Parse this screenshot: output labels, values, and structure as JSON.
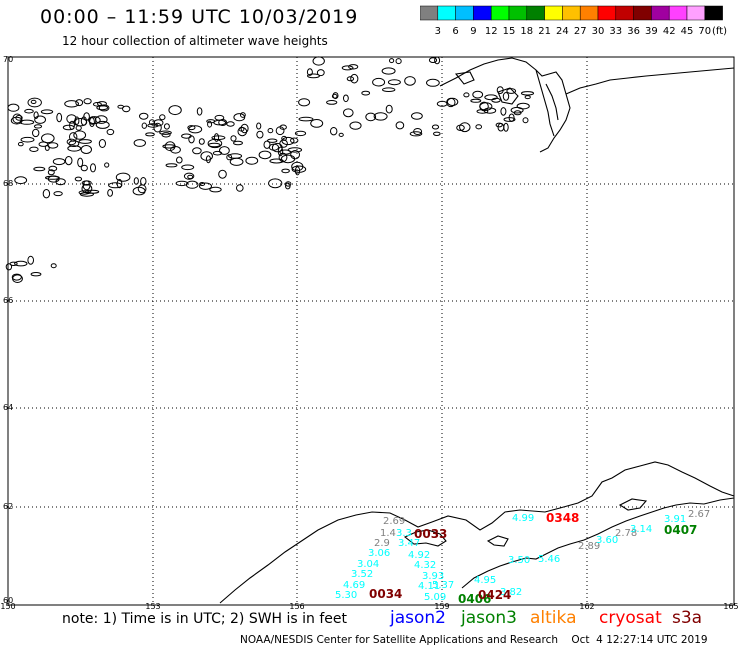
{
  "header": {
    "title": "00:00 – 11:59 UTC 10/03/2019",
    "subtitle": "12 hour collection of altimeter wave heights"
  },
  "legend": {
    "unit_label": "(ft)",
    "colors": [
      "#808080",
      "#00ffff",
      "#00bfff",
      "#0000ff",
      "#00ff00",
      "#00c000",
      "#008000",
      "#ffff00",
      "#ffc000",
      "#ff8000",
      "#ff0000",
      "#c00000",
      "#800000",
      "#a000a0",
      "#ff40ff",
      "#ffa0ff",
      "#000000"
    ],
    "ticks": [
      "3",
      "6",
      "9",
      "12",
      "15",
      "18",
      "21",
      "24",
      "27",
      "30",
      "33",
      "36",
      "39",
      "42",
      "45",
      "70"
    ]
  },
  "map": {
    "lat_labels": [
      "70",
      "68",
      "66",
      "64",
      "62",
      "60"
    ],
    "lon_labels": [
      "150",
      "153",
      "156",
      "159",
      "162",
      "165"
    ],
    "swh_labels": [
      {
        "text": "2.69",
        "color": "#808080"
      },
      {
        "text": "1.4",
        "color": "#808080"
      },
      {
        "text": "2.9",
        "color": "#808080"
      },
      {
        "text": "3.3",
        "color": "#00ffff"
      },
      {
        "text": "3.47",
        "color": "#00ffff"
      },
      {
        "text": "3.06",
        "color": "#00ffff"
      },
      {
        "text": "3.04",
        "color": "#00ffff"
      },
      {
        "text": "3.52",
        "color": "#00ffff"
      },
      {
        "text": "4.69",
        "color": "#00ffff"
      },
      {
        "text": "5.30",
        "color": "#00ffff"
      },
      {
        "text": "4.92",
        "color": "#00ffff"
      },
      {
        "text": "4.32",
        "color": "#00ffff"
      },
      {
        "text": "3.93",
        "color": "#00ffff"
      },
      {
        "text": "4.11",
        "color": "#00ffff"
      },
      {
        "text": "5.37",
        "color": "#00ffff"
      },
      {
        "text": "5.09",
        "color": "#00ffff"
      },
      {
        "text": "4.99",
        "color": "#00ffff"
      },
      {
        "text": "3.50",
        "color": "#00ffff"
      },
      {
        "text": "5.46",
        "color": "#00ffff"
      },
      {
        "text": "4.95",
        "color": "#00ffff"
      },
      {
        "text": "3.82",
        "color": "#00ffff"
      },
      {
        "text": "2.89",
        "color": "#808080"
      },
      {
        "text": "3.60",
        "color": "#00ffff"
      },
      {
        "text": "2.78",
        "color": "#808080"
      },
      {
        "text": "3.14",
        "color": "#00ffff"
      },
      {
        "text": "3.91",
        "color": "#00ffff"
      },
      {
        "text": "2.67",
        "color": "#808080"
      }
    ],
    "pass_times": [
      {
        "text": "0033",
        "color": "#800000"
      },
      {
        "text": "0034",
        "color": "#800000"
      },
      {
        "text": "0348",
        "color": "#ff0000"
      },
      {
        "text": "0406",
        "color": "#008000"
      },
      {
        "text": "0424",
        "color": "#800000"
      },
      {
        "text": "0407",
        "color": "#008000"
      }
    ]
  },
  "notes": {
    "note_text": "note: 1) Time is in UTC; 2) SWH is in feet",
    "satellites": [
      {
        "name": "jason2",
        "color": "#0000ff"
      },
      {
        "name": "jason3",
        "color": "#008000"
      },
      {
        "name": "altika",
        "color": "#ff8000"
      },
      {
        "name": "cryosat",
        "color": "#ff0000"
      },
      {
        "name": "s3a",
        "color": "#800000"
      }
    ]
  },
  "footer": {
    "credit": "NOAA/NESDIS Center for Satellite Applications and Research    Oct  4 12:27:14 UTC 2019"
  }
}
